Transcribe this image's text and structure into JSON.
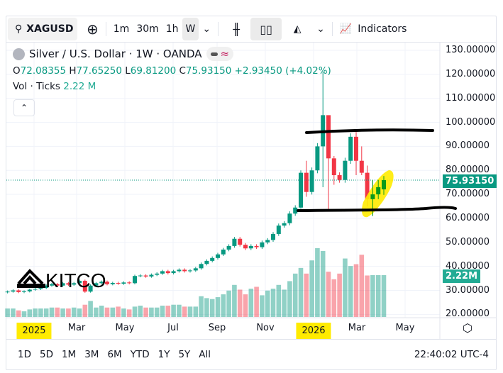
{
  "toolbar": {
    "symbol": "XAGUSD",
    "intervals": [
      "1m",
      "30m",
      "1h",
      "W"
    ],
    "active_interval": "W",
    "indicators_label": "Indicators"
  },
  "legend": {
    "title": "Silver / U.S. Dollar · 1W · OANDA",
    "o_label": "O",
    "o": "72.08355",
    "h_label": "H",
    "h": "77.65250",
    "l_label": "L",
    "l": "69.81200",
    "c_label": "C",
    "c": "75.93150",
    "change": "+2.93450 (+4.02%)",
    "vol_label": "Vol · Ticks",
    "vol": "2.22 M"
  },
  "price_axis": {
    "ticks": [
      "130.00000",
      "120.00000",
      "110.00000",
      "100.00000",
      "90.00000",
      "80.00000",
      "70.00000",
      "60.00000",
      "50.00000",
      "40.00000",
      "30.00000",
      "20.00000"
    ],
    "last_price": "75.93150",
    "last_volume": "2.22M"
  },
  "time_axis": {
    "labels": [
      "2025",
      "Mar",
      "May",
      "Jul",
      "Sep",
      "Nov",
      "2026",
      "Mar",
      "May"
    ]
  },
  "ranges": [
    "1D",
    "5D",
    "1M",
    "3M",
    "6M",
    "YTD",
    "1Y",
    "5Y",
    "All"
  ],
  "clock": "22:40:02 UTC-4",
  "watermark": "KITCO",
  "colors": {
    "up": "#089981",
    "down": "#f23645",
    "highlight": "#ffeb00"
  },
  "chart_data": {
    "type": "candlestick",
    "closes": [
      29.5,
      30,
      29.3,
      29.6,
      30.3,
      30.6,
      31,
      32,
      32.6,
      32,
      33,
      32.4,
      33,
      34,
      29.5,
      32,
      33,
      33.6,
      32.6,
      33.1,
      32.8,
      33.3,
      33,
      36,
      36.2,
      35.8,
      36.5,
      37,
      38,
      37.2,
      38,
      38.6,
      38,
      38.3,
      39.2,
      41,
      42.3,
      43.5,
      45,
      47,
      48.5,
      51.5,
      49,
      47.5,
      48.5,
      48,
      50,
      51,
      53.5,
      57,
      58,
      62,
      64.5,
      79,
      71,
      80,
      90,
      103,
      85,
      78,
      76,
      84,
      94,
      84,
      79,
      68,
      70,
      73,
      75.93
    ],
    "wick_overrides": {
      "14": [
        34.5,
        29
      ],
      "53": [
        80,
        64
      ],
      "54": [
        84,
        69
      ],
      "57": [
        121,
        73
      ],
      "58": [
        93,
        63
      ],
      "59": [
        86,
        74
      ],
      "63": [
        96,
        78
      ],
      "64": [
        90,
        78
      ],
      "65": [
        82,
        65
      ],
      "66": [
        76,
        61
      ],
      "67": [
        76,
        68
      ],
      "68": [
        77.65,
        69.81
      ]
    },
    "last_open": 72.08,
    "volumes_m": [
      0.45,
      0.45,
      0.35,
      0.3,
      0.4,
      0.45,
      0.45,
      0.45,
      0.5,
      0.5,
      0.45,
      0.45,
      0.5,
      0.45,
      0.65,
      0.85,
      0.5,
      0.6,
      0.5,
      0.5,
      0.55,
      0.45,
      0.4,
      0.55,
      0.6,
      0.5,
      0.5,
      0.5,
      0.6,
      0.6,
      0.65,
      0.65,
      0.55,
      0.55,
      0.55,
      1.1,
      1.0,
      0.95,
      1.05,
      1.2,
      1.4,
      1.7,
      1.45,
      1.2,
      1.5,
      1.6,
      1.15,
      1.4,
      1.5,
      1.7,
      1.45,
      1.9,
      2.3,
      2.6,
      2.3,
      3.0,
      3.65,
      3.5,
      2.4,
      2.0,
      2.3,
      3.1,
      2.7,
      2.8,
      3.3,
      2.2,
      2.22,
      2.22,
      2.22
    ],
    "ylim": [
      20,
      130
    ],
    "annotations": [
      "resistance line ~97",
      "support line ~63",
      "highlighted recent candles"
    ]
  }
}
